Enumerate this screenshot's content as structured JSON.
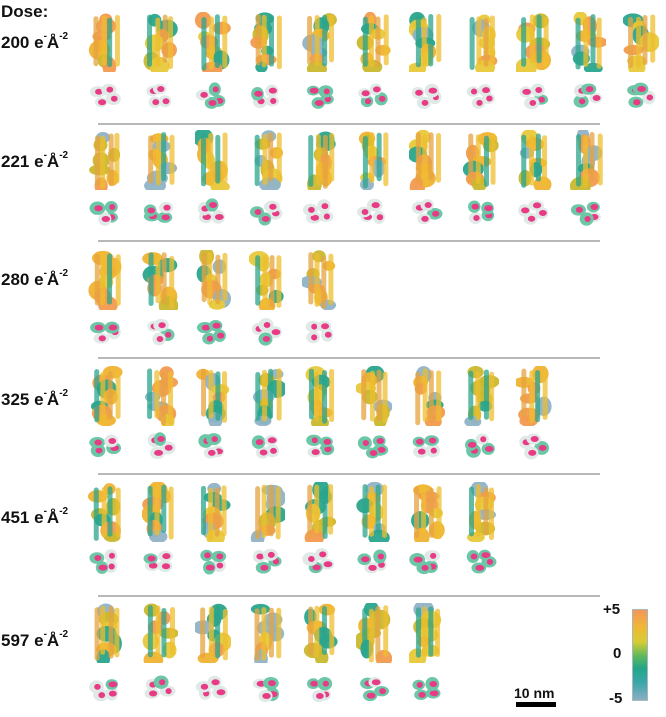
{
  "header": {
    "title": "Dose:"
  },
  "rows": [
    {
      "dose": "200",
      "unit": "e",
      "count": 11
    },
    {
      "dose": "221",
      "unit": "e",
      "count": 10
    },
    {
      "dose": "280",
      "unit": "e",
      "count": 5
    },
    {
      "dose": "325",
      "unit": "e",
      "count": 9
    },
    {
      "dose": "451",
      "unit": "e",
      "count": 8
    },
    {
      "dose": "597",
      "unit": "e",
      "count": 7
    }
  ],
  "colorbar": {
    "max_label": "+5",
    "mid_label": "0",
    "min_label": "-5",
    "colors": [
      "#f3965a",
      "#f0b638",
      "#d8cd32",
      "#5ab85f",
      "#22a48a",
      "#8aaec2"
    ]
  },
  "scalebar": {
    "label": "10 nm"
  }
}
